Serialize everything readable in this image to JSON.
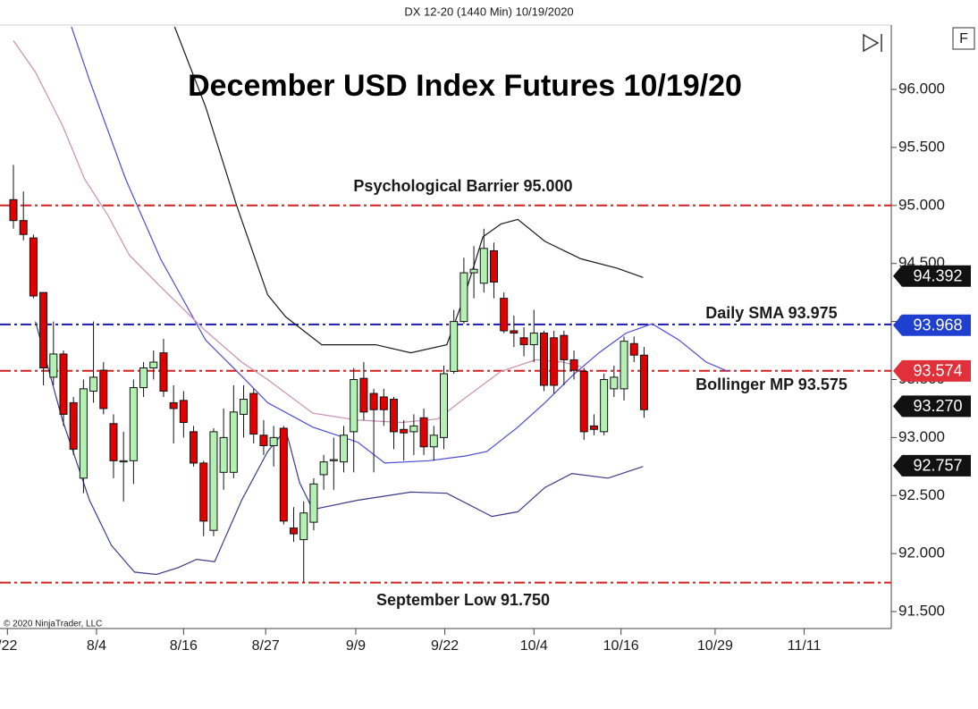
{
  "chart_data": {
    "type": "candlestick",
    "header": "DX 12-20 (1440 Min)  10/19/2020",
    "title": "December USD Index Futures 10/19/20",
    "copyright": "© 2020 NinjaTrader, LLC",
    "button": "F",
    "up_color": "#b4f0b4",
    "down_color": "#e00000",
    "open": [
      95.05,
      94.87,
      94.72,
      94.25,
      93.52,
      93.72,
      93.3,
      92.65,
      93.4,
      93.58,
      93.12,
      92.79,
      92.8,
      93.43,
      93.6,
      93.73,
      93.3,
      93.32,
      93.05,
      92.78,
      92.2,
      92.7,
      92.7,
      93.2,
      93.38,
      93.02,
      92.93,
      93.08,
      92.22,
      92.12,
      92.27,
      92.68,
      92.8,
      92.79,
      93.05,
      93.51,
      93.38,
      93.35,
      93.33,
      93.07,
      93.05,
      93.17,
      92.92,
      93.0,
      93.57,
      94.0,
      94.42,
      94.33,
      94.61,
      94.2,
      93.92,
      93.86,
      93.8,
      93.9,
      93.86,
      93.88,
      93.67,
      93.57,
      93.1,
      93.05,
      93.42,
      93.42,
      93.81,
      93.71
    ],
    "high": [
      95.35,
      95.12,
      94.75,
      94.25,
      94.0,
      93.75,
      93.35,
      93.5,
      94.0,
      93.65,
      93.2,
      93.05,
      93.5,
      93.65,
      93.75,
      93.85,
      93.45,
      93.4,
      93.1,
      92.8,
      93.08,
      93.25,
      93.45,
      93.45,
      93.42,
      93.15,
      93.1,
      93.1,
      92.4,
      92.45,
      92.65,
      92.85,
      93.0,
      93.1,
      93.6,
      93.65,
      93.42,
      93.42,
      93.35,
      93.15,
      93.2,
      93.25,
      93.1,
      93.62,
      94.1,
      94.55,
      94.65,
      94.8,
      94.68,
      94.25,
      94.05,
      93.95,
      94.1,
      93.92,
      93.92,
      93.92,
      93.75,
      93.6,
      93.2,
      93.55,
      93.62,
      93.87,
      93.87,
      93.78
    ],
    "low": [
      94.8,
      94.7,
      94.2,
      93.45,
      93.45,
      93.1,
      92.85,
      92.52,
      93.3,
      93.2,
      92.65,
      92.45,
      92.6,
      93.35,
      93.5,
      93.35,
      92.95,
      93.0,
      92.75,
      92.15,
      92.15,
      92.55,
      92.65,
      93.0,
      92.95,
      92.85,
      92.75,
      92.25,
      92.1,
      91.75,
      92.2,
      92.55,
      92.55,
      92.7,
      92.7,
      93.15,
      92.7,
      93.1,
      92.9,
      92.8,
      92.85,
      92.85,
      92.8,
      92.9,
      93.55,
      93.98,
      94.2,
      94.25,
      94.2,
      93.9,
      93.78,
      93.7,
      93.65,
      93.4,
      93.38,
      93.45,
      93.5,
      92.98,
      93.02,
      93.02,
      93.35,
      93.32,
      93.65,
      93.17
    ],
    "close": [
      94.87,
      94.75,
      94.22,
      93.6,
      93.72,
      93.2,
      92.9,
      93.42,
      93.52,
      93.25,
      92.8,
      92.8,
      93.43,
      93.6,
      93.65,
      93.4,
      93.25,
      93.13,
      92.78,
      92.28,
      93.05,
      93.0,
      93.22,
      93.33,
      93.03,
      92.93,
      93.0,
      92.28,
      92.17,
      92.35,
      92.6,
      92.79,
      92.81,
      93.02,
      93.5,
      93.22,
      93.24,
      93.24,
      93.05,
      93.04,
      93.1,
      92.92,
      93.02,
      93.55,
      94.0,
      94.42,
      94.45,
      94.63,
      94.34,
      93.92,
      93.9,
      93.8,
      93.9,
      93.45,
      93.45,
      93.67,
      93.58,
      93.05,
      93.07,
      93.5,
      93.52,
      93.83,
      93.71,
      93.24
    ],
    "indicators": [
      {
        "color": "#1a1a1a",
        "x": [
          16.1,
          19.2,
          22.3,
          25.4,
          27.2,
          30.8,
          36.2,
          39.7,
          43.3,
          45.1,
          46.9,
          48.7,
          50.4,
          53.1,
          56.7,
          60.3,
          62.9
        ],
        "values": [
          96.54,
          95.85,
          95.0,
          94.23,
          94.04,
          93.8,
          93.8,
          93.73,
          93.8,
          94.23,
          94.73,
          94.84,
          94.88,
          94.69,
          94.54,
          94.46,
          94.38
        ]
      },
      {
        "color": "#3a3a8a",
        "x": [
          2.2,
          4.9,
          7.6,
          9.8,
          12.1,
          14.3,
          16.5,
          18.3,
          20.1,
          22.8,
          25.4,
          27.2,
          28.6,
          29.9,
          34.4,
          39.7,
          43.3,
          47.8,
          50.4,
          53.1,
          55.8,
          59.4,
          62.9
        ],
        "values": [
          94.0,
          93.15,
          92.46,
          92.07,
          91.84,
          91.82,
          91.88,
          91.95,
          91.93,
          92.46,
          92.88,
          93.07,
          92.61,
          92.38,
          92.46,
          92.53,
          92.52,
          92.32,
          92.36,
          92.57,
          92.69,
          92.65,
          92.75
        ]
      },
      {
        "color": "#4b4bd6",
        "x": [
          5.8,
          7.6,
          11.2,
          14.7,
          19.2,
          22.8,
          25.4,
          29.9,
          34.4,
          37.1,
          41.5,
          45.1,
          47.3,
          50.4,
          53.1,
          55.8,
          58.5,
          61.2,
          63.8,
          66.5,
          69.2,
          71.4
        ],
        "values": [
          96.54,
          96.08,
          95.23,
          94.54,
          93.84,
          93.53,
          93.3,
          93.09,
          92.96,
          92.78,
          92.8,
          92.84,
          92.88,
          93.09,
          93.3,
          93.53,
          93.73,
          93.9,
          93.98,
          93.84,
          93.65,
          93.57
        ]
      },
      {
        "color": "#c890b4",
        "x": [
          0,
          2.2,
          4.9,
          7.1,
          9.4,
          11.6,
          14.7,
          19.2,
          22.8,
          25.4,
          29.9,
          34.4,
          38.8,
          42.4,
          45.1,
          48.7,
          52.2,
          54.9,
          56.7
        ],
        "values": [
          96.42,
          96.15,
          95.69,
          95.23,
          94.92,
          94.57,
          94.3,
          93.92,
          93.65,
          93.5,
          93.21,
          93.15,
          93.13,
          93.16,
          93.34,
          93.57,
          93.67,
          93.65,
          93.61
        ]
      }
    ],
    "levels": [
      {
        "value": 95.0,
        "color": "#d42020",
        "label": "Psychological Barrier 95.000"
      },
      {
        "value": 93.975,
        "color": "#1a1ab0",
        "label": "Daily SMA 93.975"
      },
      {
        "value": 93.575,
        "color": "#d42020",
        "label": "Bollinger MP 93.575"
      },
      {
        "value": 91.75,
        "color": "#d42020",
        "label": "September Low 91.750"
      }
    ],
    "price_tags": [
      {
        "value": 94.392,
        "label": "94.392",
        "color": "#111111"
      },
      {
        "value": 93.968,
        "label": "93.968",
        "color": "#1e3fd0"
      },
      {
        "value": 93.574,
        "label": "93.574",
        "color": "#e0303a"
      },
      {
        "value": 93.27,
        "label": "93.270",
        "color": "#111111"
      },
      {
        "value": 92.757,
        "label": "92.757",
        "color": "#111111"
      }
    ],
    "ylim": [
      91.354,
      96.555
    ],
    "yticks": [
      {
        "value": 91.5,
        "label": "91.500"
      },
      {
        "value": 92.0,
        "label": "92.000"
      },
      {
        "value": 92.5,
        "label": "92.500"
      },
      {
        "value": 93.0,
        "label": "93.000"
      },
      {
        "value": 93.5,
        "label": "93.500"
      },
      {
        "value": 94.0,
        "label": "94.000"
      },
      {
        "value": 94.5,
        "label": "94.500"
      },
      {
        "value": 95.0,
        "label": "95.000"
      },
      {
        "value": 95.5,
        "label": "95.500"
      },
      {
        "value": 96.0,
        "label": "96.000"
      }
    ],
    "xlim": [
      -1.34,
      87.7
    ],
    "xticks": [
      {
        "value": -0.6,
        "label": "/22"
      },
      {
        "value": 8.3,
        "label": "8/4"
      },
      {
        "value": 17,
        "label": "8/16"
      },
      {
        "value": 25.2,
        "label": "8/27"
      },
      {
        "value": 34.2,
        "label": "9/9"
      },
      {
        "value": 43.1,
        "label": "9/22"
      },
      {
        "value": 52,
        "label": "10/4"
      },
      {
        "value": 60.7,
        "label": "10/16"
      },
      {
        "value": 70.1,
        "label": "10/29"
      },
      {
        "value": 79,
        "label": "11/11"
      }
    ]
  }
}
